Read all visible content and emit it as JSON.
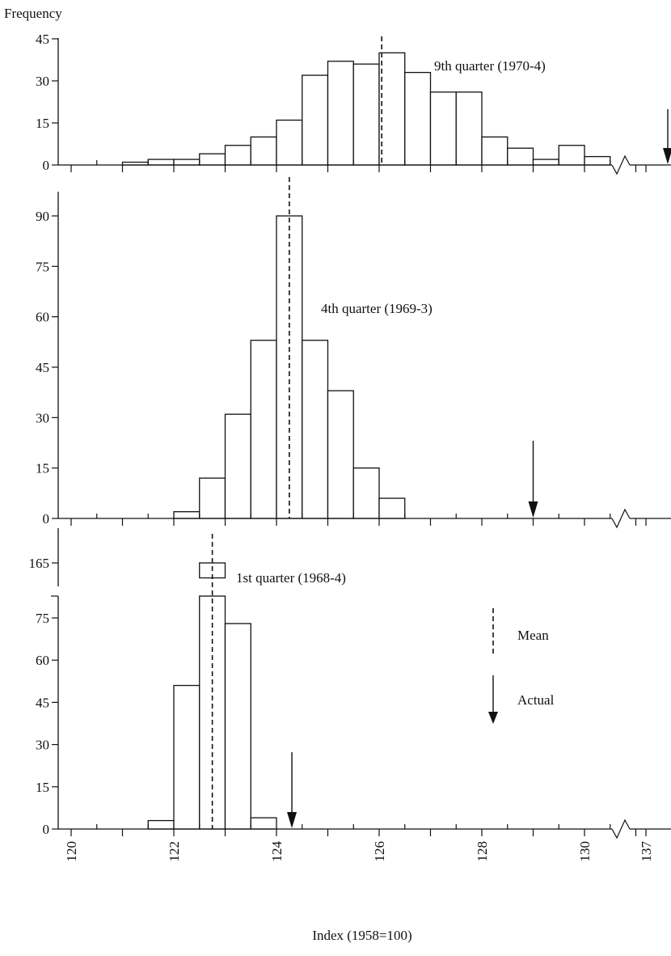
{
  "figure": {
    "y_title": "Frequency",
    "x_title": "Index (1958=100)",
    "x_tick_labels": [
      "120",
      "122",
      "124",
      "126",
      "128",
      "130",
      "137"
    ],
    "legend": {
      "mean_label": "Mean",
      "actual_label": "Actual"
    }
  },
  "chart_data": [
    {
      "type": "bar",
      "title": "9th quarter (1970-4)",
      "bin_width": 0.5,
      "bin_starts": [
        121.0,
        121.5,
        122.0,
        122.5,
        123.0,
        123.5,
        124.0,
        124.5,
        125.0,
        125.5,
        126.0,
        126.5,
        127.0,
        127.5,
        128.0,
        128.5,
        129.0,
        129.5,
        130.0
      ],
      "values": [
        1,
        2,
        2,
        4,
        7,
        10,
        16,
        32,
        37,
        36,
        40,
        33,
        26,
        26,
        10,
        6,
        2,
        7,
        3
      ],
      "mean": 126.05,
      "actual": 137,
      "y_ticks": [
        0,
        15,
        30,
        45
      ],
      "ylim": [
        0,
        45
      ],
      "xlabel": "Index (1958=100)",
      "ylabel": "Frequency"
    },
    {
      "type": "bar",
      "title": "4th quarter (1969-3)",
      "bin_width": 0.5,
      "bin_starts": [
        122.0,
        122.5,
        123.0,
        123.5,
        124.0,
        124.5,
        125.0,
        125.5,
        126.0
      ],
      "values": [
        2,
        12,
        31,
        53,
        90,
        53,
        38,
        15,
        6
      ],
      "mean": 124.25,
      "actual": 129.0,
      "y_ticks": [
        0,
        15,
        30,
        45,
        60,
        75,
        90
      ],
      "ylim": [
        0,
        90
      ],
      "xlabel": "Index (1958=100)",
      "ylabel": "Frequency"
    },
    {
      "type": "bar",
      "title": "1st quarter (1968-4)",
      "bin_width": 0.5,
      "bin_starts": [
        121.5,
        122.0,
        122.5,
        123.0,
        123.5
      ],
      "values": [
        3,
        51,
        165,
        73,
        4
      ],
      "mean": 122.75,
      "actual": 124.3,
      "y_ticks": [
        0,
        15,
        30,
        45,
        60,
        75,
        165
      ],
      "ylim": [
        0,
        165
      ],
      "axis_break": [
        82,
        160
      ],
      "xlabel": "Index (1958=100)",
      "ylabel": "Frequency"
    }
  ]
}
